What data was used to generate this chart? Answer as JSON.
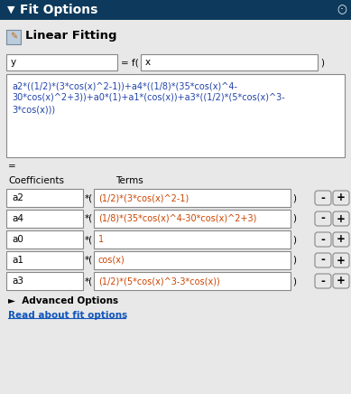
{
  "title_bar_text": "Fit Options",
  "title_bar_bg": "#0d3a5c",
  "title_bar_fg": "#ffffff",
  "section_title": "Linear Fitting",
  "panel_bg": "#e8e8e8",
  "lhs_var": "y",
  "rhs_label": "= f(",
  "rhs_var": "x",
  "formula_line1": "a2*((1/2)*(3*cos(x)^2-1))+a4*((1/8)*(35*cos(x)^4-",
  "formula_line2": "30*cos(x)^2+3))+a0*(1)+a1*(cos(x))+a3*((1/2)*(5*cos(x)^3-",
  "formula_line3": "3*cos(x)))",
  "equals_label": "=",
  "col_coeff": "Coefficients",
  "col_terms": "Terms",
  "rows": [
    {
      "coeff": "a2",
      "term": "(1/2)*(3*cos(x)^2-1)"
    },
    {
      "coeff": "a4",
      "term": "(1/8)*(35*cos(x)^4-30*cos(x)^2+3)"
    },
    {
      "coeff": "a0",
      "term": "1"
    },
    {
      "coeff": "a1",
      "term": "cos(x)"
    },
    {
      "coeff": "a3",
      "term": "(1/2)*(5*cos(x)^3-3*cos(x))"
    }
  ],
  "advanced_options_text": "►  Advanced Options",
  "link_text": "Read about fit options",
  "link_color": "#1155bb",
  "box_border": "#aaaaaa",
  "input_bg": "#ffffff",
  "text_color": "#000000",
  "formula_text_color": "#2244aa",
  "term_text_color": "#cc4400",
  "font_size": 7.5,
  "header_font_size": 9.5,
  "title_font_size": 10
}
